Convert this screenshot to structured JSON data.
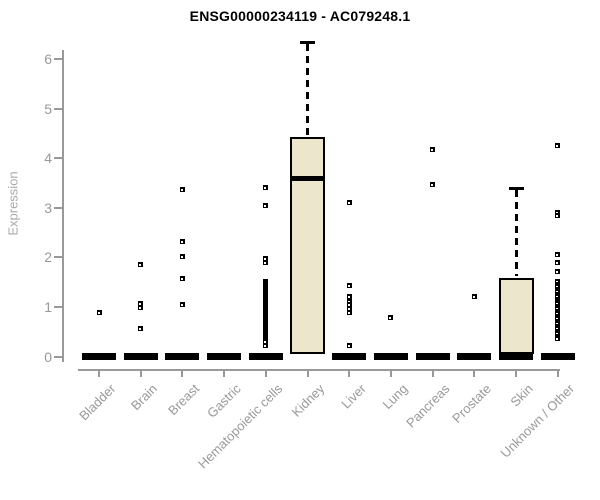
{
  "chart_data": {
    "type": "boxplot",
    "title": "ENSG00000234119 - AC079248.1",
    "xlabel": "",
    "ylabel": "Expression",
    "ylim": [
      0,
      6.35
    ],
    "y_ticks": [
      0,
      1,
      2,
      3,
      4,
      5,
      6
    ],
    "grid": false,
    "legend": "none",
    "categories": [
      "Bladder",
      "Brain",
      "Breast",
      "Gastric",
      "Hematopoietic cells",
      "Kidney",
      "Liver",
      "Lung",
      "Pancreas",
      "Prostate",
      "Skin",
      "Unknown / Other"
    ],
    "boxes": [
      null,
      null,
      null,
      null,
      null,
      {
        "q1": 0.05,
        "median": 3.6,
        "q3": 4.42,
        "whisker_high": 6.35
      },
      null,
      null,
      null,
      null,
      {
        "q1": 0.05,
        "median": 0.05,
        "q3": 1.58,
        "whisker_high": 3.4
      },
      null
    ],
    "zero_bar": [
      true,
      true,
      true,
      true,
      true,
      false,
      true,
      true,
      true,
      true,
      true,
      true
    ],
    "points": [
      [
        0.89
      ],
      [
        1.85,
        1.07,
        0.98,
        0.57
      ],
      [
        3.38,
        2.33,
        2.02,
        1.58,
        1.04
      ],
      [],
      [
        3.41,
        3.05,
        1.98,
        1.9,
        1.51,
        1.47,
        1.43,
        1.39,
        1.35,
        1.31,
        1.27,
        1.23,
        1.19,
        1.15,
        1.11,
        1.07,
        1.03,
        0.99,
        0.95,
        0.91,
        0.87,
        0.83,
        0.79,
        0.75,
        0.71,
        0.67,
        0.63,
        0.59,
        0.55,
        0.51,
        0.47,
        0.43,
        0.39,
        0.35,
        0.31,
        0.23
      ],
      [],
      [
        3.1,
        1.44,
        1.22,
        1.12,
        1.04,
        0.96,
        0.88,
        0.23
      ],
      [
        0.79
      ],
      [
        4.18,
        3.47
      ],
      [
        1.21
      ],
      [],
      [
        4.25,
        2.9,
        2.84,
        2.05,
        1.89,
        1.71,
        1.51,
        1.46,
        1.41,
        1.36,
        1.31,
        1.26,
        1.21,
        1.16,
        1.11,
        1.06,
        1.01,
        0.96,
        0.91,
        0.86,
        0.81,
        0.76,
        0.71,
        0.66,
        0.61,
        0.56,
        0.51,
        0.46,
        0.41,
        0.37
      ]
    ]
  },
  "colors": {
    "box_fill": "#ece6cd",
    "data_ink": "#000000",
    "axis": "#999999",
    "tick_label": "#999999",
    "y_axis_title": "#a9a9a9",
    "title": "#000000",
    "background": "#ffffff"
  }
}
